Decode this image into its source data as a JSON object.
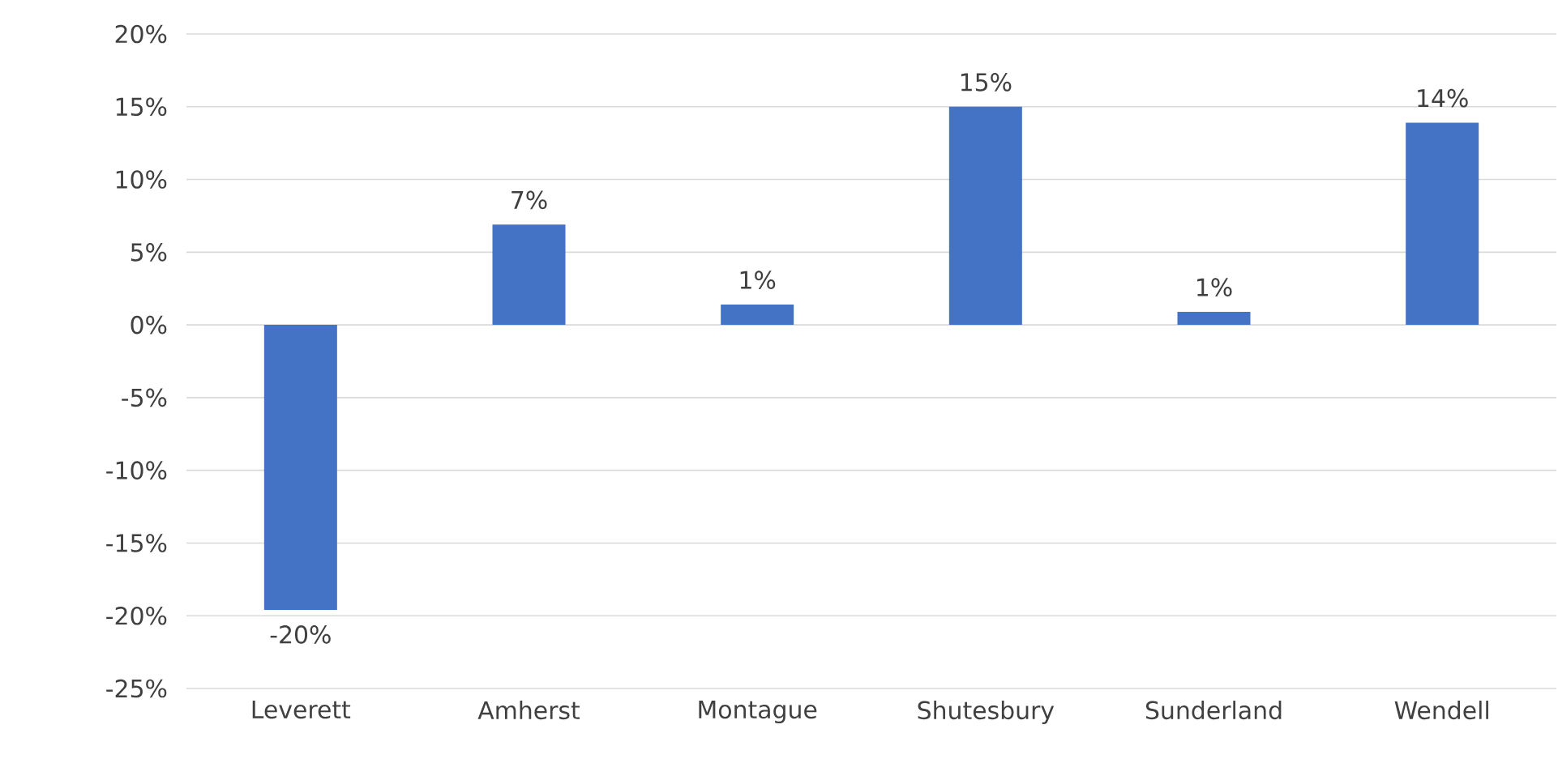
{
  "chart_data": {
    "type": "bar",
    "categories": [
      "Leverett",
      "Amherst",
      "Montague",
      "Shutesbury",
      "Sunderland",
      "Wendell"
    ],
    "values": [
      -19.6,
      6.9,
      1.4,
      15,
      0.9,
      13.9
    ],
    "value_labels": [
      "-20%",
      "7%",
      "1%",
      "15%",
      "1%",
      "14%"
    ],
    "color": "#4472c4",
    "ylim": [
      -25,
      20
    ],
    "yticks": [
      {
        "value": -25,
        "label": "-25%"
      },
      {
        "value": -20,
        "label": "-20%"
      },
      {
        "value": -15,
        "label": "-15%"
      },
      {
        "value": -10,
        "label": "-10%"
      },
      {
        "value": -5,
        "label": "-5%"
      },
      {
        "value": 0,
        "label": "0%"
      },
      {
        "value": 5,
        "label": "5%"
      },
      {
        "value": 10,
        "label": "10%"
      },
      {
        "value": 15,
        "label": "15%"
      },
      {
        "value": 20,
        "label": "20%"
      }
    ],
    "grid": "y"
  }
}
